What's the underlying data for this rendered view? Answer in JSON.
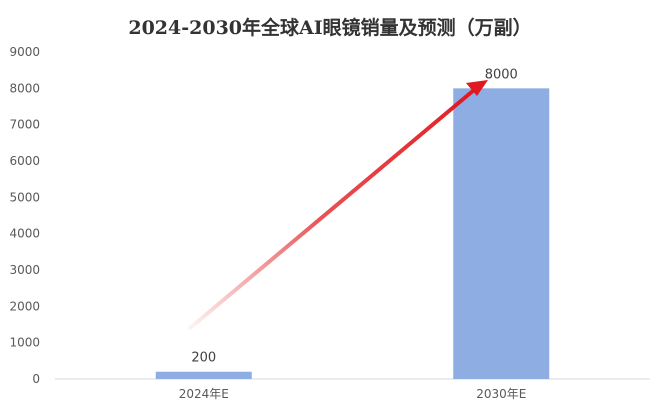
{
  "chart_data": {
    "type": "bar",
    "title": "2024-2030年全球AI眼镜销量及预测（万副）",
    "categories": [
      "2024年E",
      "2030年E"
    ],
    "values": [
      200,
      8000
    ],
    "data_labels": [
      "200",
      "8000"
    ],
    "xlabel": "",
    "ylabel": "",
    "ylim": [
      0,
      9000
    ],
    "yticks": [
      "0",
      "1000",
      "2000",
      "3000",
      "4000",
      "5000",
      "6000",
      "7000",
      "8000",
      "9000"
    ],
    "grid": false,
    "legend": "none",
    "bar_color": "#8EAEE3",
    "arrow_color": "#E0191E",
    "annotation": "arrow"
  }
}
